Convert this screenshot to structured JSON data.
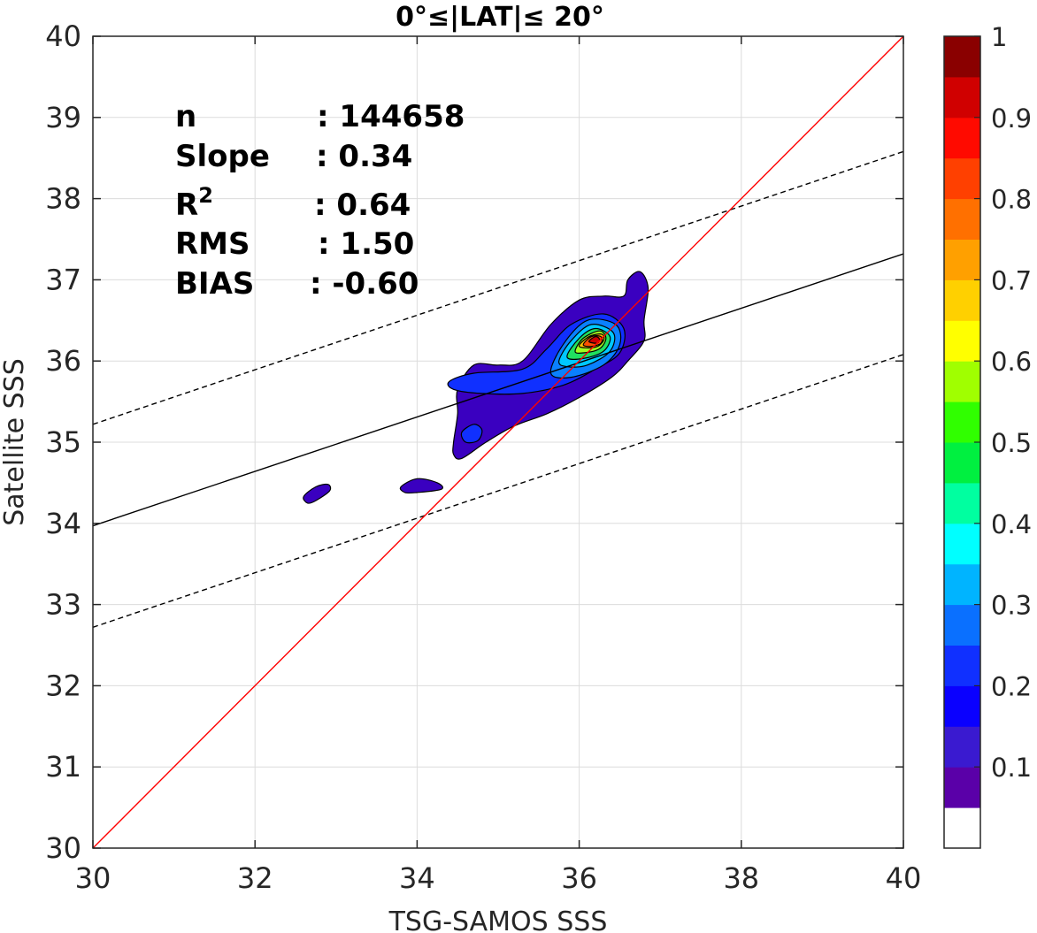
{
  "chart_data": {
    "type": "contour",
    "title": "0°≤|LAT|≤ 20°",
    "xlabel": "TSG-SAMOS SSS",
    "ylabel": "Satellite SSS",
    "xlim": [
      30,
      40
    ],
    "ylim": [
      30,
      40
    ],
    "xticks": [
      "30",
      "32",
      "34",
      "36",
      "38",
      "40"
    ],
    "yticks": [
      "30",
      "31",
      "32",
      "33",
      "34",
      "35",
      "36",
      "37",
      "38",
      "39",
      "40"
    ],
    "grid": true,
    "stats": [
      {
        "label": "n",
        "value": ": 144658"
      },
      {
        "label": "Slope",
        "value": ": 0.34"
      },
      {
        "label": "R",
        "sup": "2",
        "value": ": 0.64"
      },
      {
        "label": "RMS",
        "value": ": 1.50"
      },
      {
        "label": "BIAS",
        "value": ": -0.60"
      }
    ],
    "lines": {
      "one_to_one": {
        "x": [
          30,
          40
        ],
        "y": [
          30,
          40
        ],
        "color": "#ff0000"
      },
      "fit": {
        "x": [
          30,
          40
        ],
        "y": [
          33.97,
          37.32
        ],
        "color": "#000000"
      },
      "fit_upper": {
        "x": [
          30,
          40
        ],
        "y": [
          35.22,
          38.58
        ],
        "color": "#000000",
        "style": "dashed"
      },
      "fit_lower": {
        "x": [
          30,
          40
        ],
        "y": [
          32.72,
          36.08
        ],
        "color": "#000000",
        "style": "dashed"
      }
    },
    "contours": [
      {
        "level": 0.05,
        "color": "#3a00c0",
        "points": [
          [
            34.45,
            35.0
          ],
          [
            34.5,
            35.35
          ],
          [
            34.5,
            35.65
          ],
          [
            34.7,
            35.95
          ],
          [
            35.0,
            35.95
          ],
          [
            35.3,
            36.0
          ],
          [
            35.65,
            36.45
          ],
          [
            36.0,
            36.75
          ],
          [
            36.3,
            36.8
          ],
          [
            36.55,
            36.8
          ],
          [
            36.6,
            37.0
          ],
          [
            36.75,
            37.1
          ],
          [
            36.85,
            36.9
          ],
          [
            36.8,
            36.5
          ],
          [
            36.8,
            36.25
          ],
          [
            36.6,
            36.0
          ],
          [
            36.4,
            35.8
          ],
          [
            36.0,
            35.55
          ],
          [
            35.6,
            35.35
          ],
          [
            35.2,
            35.2
          ],
          [
            34.85,
            35.0
          ],
          [
            34.55,
            34.8
          ],
          [
            34.45,
            34.85
          ]
        ]
      },
      {
        "level": 0.05,
        "color": "#3a00c0",
        "points": [
          [
            32.6,
            34.33
          ],
          [
            32.75,
            34.45
          ],
          [
            32.9,
            34.48
          ],
          [
            32.92,
            34.4
          ],
          [
            32.75,
            34.28
          ],
          [
            32.65,
            34.25
          ]
        ]
      },
      {
        "level": 0.05,
        "color": "#3a00c0",
        "points": [
          [
            33.8,
            34.45
          ],
          [
            34.0,
            34.55
          ],
          [
            34.25,
            34.5
          ],
          [
            34.3,
            34.42
          ],
          [
            34.0,
            34.38
          ],
          [
            33.85,
            34.38
          ]
        ]
      },
      {
        "level": 0.15,
        "color": "#1030ff",
        "points": [
          [
            34.4,
            35.75
          ],
          [
            34.7,
            35.85
          ],
          [
            35.3,
            35.9
          ],
          [
            35.6,
            36.15
          ],
          [
            35.9,
            36.45
          ],
          [
            36.3,
            36.58
          ],
          [
            36.55,
            36.4
          ],
          [
            36.5,
            36.1
          ],
          [
            36.2,
            35.9
          ],
          [
            35.8,
            35.7
          ],
          [
            35.3,
            35.6
          ],
          [
            34.8,
            35.6
          ],
          [
            34.45,
            35.65
          ]
        ]
      },
      {
        "level": 0.15,
        "color": "#1030ff",
        "points": [
          [
            34.55,
            35.12
          ],
          [
            34.7,
            35.22
          ],
          [
            34.8,
            35.15
          ],
          [
            34.75,
            35.02
          ],
          [
            34.6,
            35.0
          ]
        ]
      },
      {
        "level": 0.3,
        "color": "#0a80ff",
        "points": [
          [
            35.65,
            35.85
          ],
          [
            35.8,
            36.2
          ],
          [
            36.1,
            36.5
          ],
          [
            36.45,
            36.45
          ],
          [
            36.5,
            36.2
          ],
          [
            36.3,
            35.95
          ],
          [
            35.9,
            35.8
          ]
        ]
      },
      {
        "level": 0.4,
        "color": "#00c8ff",
        "points": [
          [
            35.75,
            36.0
          ],
          [
            35.9,
            36.25
          ],
          [
            36.15,
            36.45
          ],
          [
            36.42,
            36.35
          ],
          [
            36.38,
            36.12
          ],
          [
            36.1,
            35.95
          ],
          [
            35.85,
            35.93
          ]
        ]
      },
      {
        "level": 0.5,
        "color": "#20e060",
        "points": [
          [
            35.85,
            36.05
          ],
          [
            36.0,
            36.28
          ],
          [
            36.2,
            36.4
          ],
          [
            36.38,
            36.3
          ],
          [
            36.3,
            36.12
          ],
          [
            36.05,
            36.03
          ]
        ]
      },
      {
        "level": 0.6,
        "color": "#a0ff20",
        "points": [
          [
            35.95,
            36.12
          ],
          [
            36.05,
            36.28
          ],
          [
            36.25,
            36.37
          ],
          [
            36.33,
            36.28
          ],
          [
            36.25,
            36.15
          ],
          [
            36.05,
            36.1
          ]
        ]
      },
      {
        "level": 0.7,
        "color": "#ffc000",
        "points": [
          [
            36.0,
            36.18
          ],
          [
            36.12,
            36.3
          ],
          [
            36.28,
            36.33
          ],
          [
            36.3,
            36.25
          ],
          [
            36.2,
            36.17
          ]
        ]
      },
      {
        "level": 0.8,
        "color": "#ff5000",
        "points": [
          [
            36.05,
            36.2
          ],
          [
            36.15,
            36.3
          ],
          [
            36.27,
            36.3
          ],
          [
            36.27,
            36.22
          ],
          [
            36.15,
            36.18
          ]
        ]
      },
      {
        "level": 0.9,
        "color": "#cc0000",
        "points": [
          [
            36.12,
            36.24
          ],
          [
            36.2,
            36.3
          ],
          [
            36.25,
            36.27
          ],
          [
            36.22,
            36.22
          ]
        ]
      }
    ],
    "colorbar": {
      "colors": [
        "#ffffff",
        "#5a00a8",
        "#3a1ad0",
        "#0a00ff",
        "#1030ff",
        "#0a70ff",
        "#00b4ff",
        "#00ffff",
        "#00ffa0",
        "#00f040",
        "#30ff00",
        "#a0ff00",
        "#ffff00",
        "#ffd000",
        "#ffa000",
        "#ff7000",
        "#ff4000",
        "#ff0a00",
        "#d00000",
        "#8a0000"
      ],
      "ticks": [
        "0.1",
        "0.2",
        "0.3",
        "0.4",
        "0.5",
        "0.6",
        "0.7",
        "0.8",
        "0.9",
        "1"
      ],
      "tick_values": [
        0.1,
        0.2,
        0.3,
        0.4,
        0.5,
        0.6,
        0.7,
        0.8,
        0.9,
        1.0
      ],
      "range": [
        0,
        1
      ]
    }
  }
}
